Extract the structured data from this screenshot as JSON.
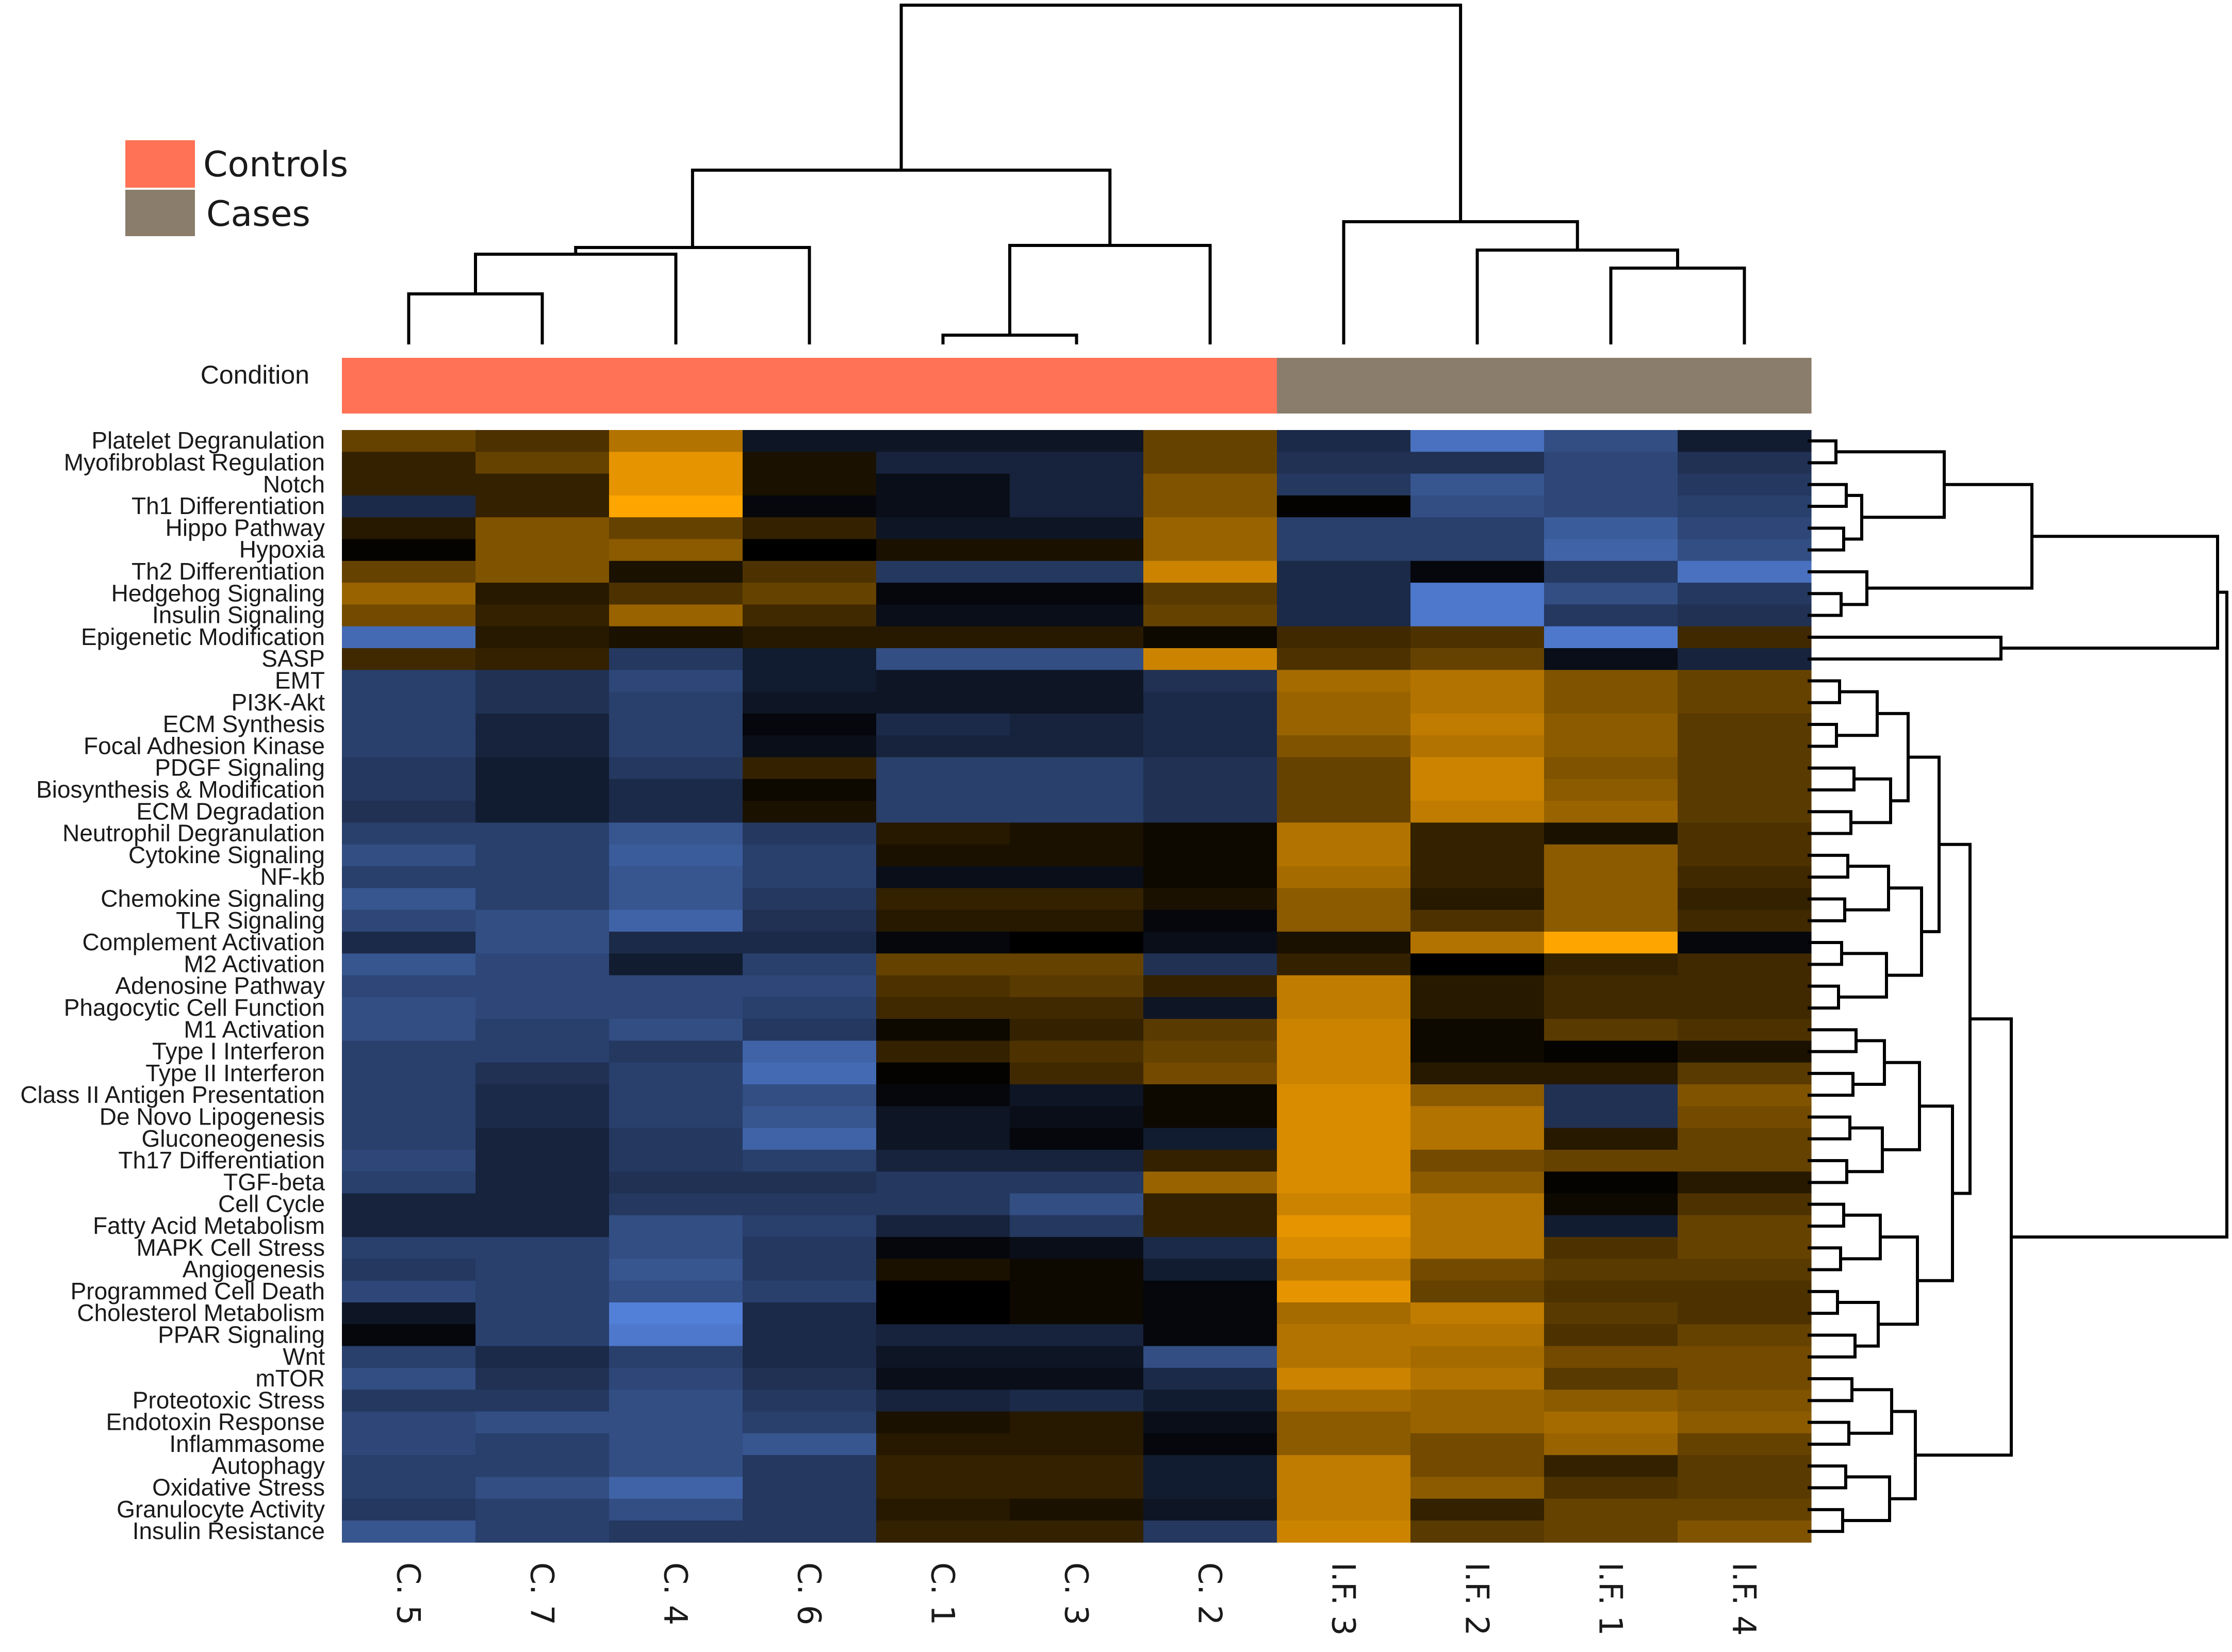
{
  "chart_data": {
    "type": "heatmap",
    "columns": [
      "C. 5",
      "C. 7",
      "C. 4",
      "C. 6",
      "C. 1",
      "C. 3",
      "C. 2",
      "I.F. 3",
      "I.F. 2",
      "I.F. 1",
      "I.F. 4"
    ],
    "rows": [
      "Platelet Degranulation",
      "Myofibroblast Regulation",
      "Notch",
      "Th1 Differentiation",
      "Hippo Pathway",
      "Hypoxia",
      "Th2 Differentiation",
      "Hedgehog Signaling",
      "Insulin Signaling",
      "Epigenetic Modification",
      "SASP",
      "EMT",
      "PI3K-Akt",
      "ECM Synthesis",
      "Focal Adhesion Kinase",
      "PDGF Signaling",
      "Biosynthesis & Modification",
      "ECM Degradation",
      "Neutrophil Degranulation",
      "Cytokine Signaling",
      "NF-kb",
      "Chemokine Signaling",
      "TLR Signaling",
      "Complement Activation",
      "M2 Activation",
      "Adenosine Pathway",
      "Phagocytic Cell Function",
      "M1 Activation",
      "Type I Interferon",
      "Type II Interferon",
      "Class II Antigen Presentation",
      "De Novo Lipogenesis",
      "Gluconeogenesis",
      "Th17 Differentiation",
      "TGF-beta",
      "Cell Cycle",
      "Fatty Acid Metabolism",
      "MAPK Cell Stress",
      "Angiogenesis",
      "Programmed Cell Death",
      "Cholesterol Metabolism",
      "PPAR Signaling",
      "Wnt",
      "mTOR",
      "Proteotoxic Stress",
      "Endotoxin Response",
      "Inflammasome",
      "Autophagy",
      "Oxidative Stress",
      "Granulocyte Activity",
      "Insulin Resistance"
    ],
    "values": [
      [
        0.4,
        0.3,
        0.7,
        -0.15,
        -0.15,
        -0.15,
        0.4,
        -0.3,
        -0.8,
        -0.55,
        -0.2
      ],
      [
        0.2,
        0.4,
        0.9,
        0.1,
        -0.25,
        -0.25,
        0.4,
        -0.35,
        -0.35,
        -0.5,
        -0.35
      ],
      [
        0.2,
        0.2,
        0.9,
        0.1,
        -0.1,
        -0.25,
        0.5,
        -0.4,
        -0.6,
        -0.5,
        -0.4
      ],
      [
        -0.3,
        0.2,
        1.0,
        -0.05,
        -0.1,
        -0.25,
        0.5,
        0.02,
        -0.55,
        -0.5,
        -0.45
      ],
      [
        0.15,
        0.5,
        0.4,
        0.2,
        -0.15,
        -0.15,
        0.6,
        -0.45,
        -0.45,
        -0.65,
        -0.5
      ],
      [
        0.02,
        0.5,
        0.55,
        0.0,
        0.1,
        0.1,
        0.6,
        -0.45,
        -0.45,
        -0.7,
        -0.55
      ],
      [
        0.4,
        0.5,
        0.1,
        0.3,
        -0.4,
        -0.4,
        0.8,
        -0.3,
        -0.05,
        -0.4,
        -0.8
      ],
      [
        0.6,
        0.15,
        0.3,
        0.4,
        -0.05,
        -0.05,
        0.35,
        -0.3,
        -0.85,
        -0.55,
        -0.4
      ],
      [
        0.45,
        0.2,
        0.6,
        0.25,
        -0.1,
        -0.1,
        0.4,
        -0.3,
        -0.85,
        -0.4,
        -0.35
      ],
      [
        -0.75,
        0.15,
        0.1,
        0.15,
        0.15,
        0.15,
        0.05,
        0.25,
        0.3,
        -0.85,
        0.25
      ],
      [
        0.25,
        0.2,
        -0.4,
        -0.2,
        -0.55,
        -0.55,
        0.8,
        0.3,
        0.4,
        -0.1,
        -0.25
      ],
      [
        -0.45,
        -0.35,
        -0.5,
        -0.2,
        -0.15,
        -0.15,
        -0.35,
        0.65,
        0.7,
        0.5,
        0.4
      ],
      [
        -0.45,
        -0.35,
        -0.45,
        -0.15,
        -0.15,
        -0.15,
        -0.3,
        0.6,
        0.7,
        0.5,
        0.4
      ],
      [
        -0.45,
        -0.25,
        -0.45,
        -0.05,
        -0.3,
        -0.25,
        -0.3,
        0.6,
        0.75,
        0.55,
        0.35
      ],
      [
        -0.45,
        -0.25,
        -0.45,
        -0.1,
        -0.25,
        -0.25,
        -0.3,
        0.5,
        0.7,
        0.55,
        0.35
      ],
      [
        -0.4,
        -0.2,
        -0.4,
        0.2,
        -0.45,
        -0.45,
        -0.35,
        0.4,
        0.8,
        0.5,
        0.35
      ],
      [
        -0.4,
        -0.2,
        -0.3,
        0.05,
        -0.45,
        -0.45,
        -0.35,
        0.4,
        0.8,
        0.55,
        0.35
      ],
      [
        -0.35,
        -0.2,
        -0.3,
        0.1,
        -0.45,
        -0.45,
        -0.35,
        0.4,
        0.75,
        0.6,
        0.35
      ],
      [
        -0.45,
        -0.45,
        -0.6,
        -0.4,
        0.15,
        0.1,
        0.05,
        0.7,
        0.2,
        0.1,
        0.3
      ],
      [
        -0.55,
        -0.45,
        -0.65,
        -0.45,
        0.1,
        0.1,
        0.05,
        0.7,
        0.2,
        0.55,
        0.3
      ],
      [
        -0.45,
        -0.45,
        -0.6,
        -0.45,
        -0.1,
        -0.1,
        0.05,
        0.65,
        0.2,
        0.55,
        0.25
      ],
      [
        -0.6,
        -0.45,
        -0.6,
        -0.4,
        0.2,
        0.2,
        0.1,
        0.55,
        0.15,
        0.55,
        0.2
      ],
      [
        -0.5,
        -0.55,
        -0.7,
        -0.35,
        0.15,
        0.15,
        -0.05,
        0.55,
        0.3,
        0.55,
        0.25
      ],
      [
        -0.3,
        -0.55,
        -0.3,
        -0.3,
        -0.05,
        0.0,
        -0.1,
        0.1,
        0.7,
        1.0,
        -0.05
      ],
      [
        -0.6,
        -0.5,
        -0.2,
        -0.45,
        0.4,
        0.4,
        -0.35,
        0.2,
        0.0,
        0.2,
        0.25
      ],
      [
        -0.5,
        -0.5,
        -0.5,
        -0.5,
        0.3,
        0.35,
        0.2,
        0.75,
        0.15,
        0.25,
        0.25
      ],
      [
        -0.55,
        -0.5,
        -0.5,
        -0.45,
        0.25,
        0.25,
        -0.15,
        0.75,
        0.15,
        0.25,
        0.25
      ],
      [
        -0.55,
        -0.45,
        -0.55,
        -0.4,
        0.05,
        0.2,
        0.35,
        0.8,
        0.05,
        0.35,
        0.3
      ],
      [
        -0.45,
        -0.45,
        -0.4,
        -0.7,
        0.2,
        0.3,
        0.4,
        0.8,
        0.05,
        0.02,
        0.1
      ],
      [
        -0.45,
        -0.35,
        -0.45,
        -0.75,
        0.02,
        0.25,
        0.45,
        0.8,
        0.15,
        0.15,
        0.35
      ],
      [
        -0.45,
        -0.3,
        -0.45,
        -0.55,
        -0.05,
        -0.15,
        0.05,
        0.85,
        0.55,
        -0.35,
        0.5
      ],
      [
        -0.45,
        -0.3,
        -0.45,
        -0.6,
        -0.15,
        -0.1,
        0.05,
        0.85,
        0.7,
        -0.35,
        0.45
      ],
      [
        -0.45,
        -0.25,
        -0.4,
        -0.7,
        -0.15,
        -0.05,
        -0.2,
        0.85,
        0.7,
        0.15,
        0.4
      ],
      [
        -0.5,
        -0.25,
        -0.4,
        -0.45,
        -0.25,
        -0.25,
        0.2,
        0.85,
        0.45,
        0.4,
        0.4
      ],
      [
        -0.45,
        -0.25,
        -0.35,
        -0.35,
        -0.4,
        -0.4,
        0.6,
        0.85,
        0.55,
        0.02,
        0.15
      ],
      [
        -0.25,
        -0.25,
        -0.4,
        -0.4,
        -0.4,
        -0.55,
        0.2,
        0.8,
        0.7,
        0.05,
        0.3
      ],
      [
        -0.25,
        -0.25,
        -0.55,
        -0.45,
        -0.25,
        -0.4,
        0.2,
        0.9,
        0.7,
        -0.2,
        0.4
      ],
      [
        -0.45,
        -0.45,
        -0.55,
        -0.4,
        -0.05,
        -0.1,
        -0.3,
        0.85,
        0.7,
        0.3,
        0.4
      ],
      [
        -0.4,
        -0.45,
        -0.6,
        -0.4,
        0.1,
        0.05,
        -0.2,
        0.75,
        0.45,
        0.35,
        0.35
      ],
      [
        -0.5,
        -0.45,
        -0.55,
        -0.45,
        0.0,
        0.05,
        -0.05,
        0.9,
        0.4,
        0.3,
        0.3
      ],
      [
        -0.15,
        -0.45,
        -0.9,
        -0.3,
        0.0,
        0.05,
        -0.05,
        0.65,
        0.75,
        0.35,
        0.3
      ],
      [
        -0.05,
        -0.45,
        -0.85,
        -0.3,
        -0.25,
        -0.25,
        -0.05,
        0.7,
        0.7,
        0.3,
        0.4
      ],
      [
        -0.45,
        -0.3,
        -0.45,
        -0.3,
        -0.15,
        -0.15,
        -0.55,
        0.7,
        0.65,
        0.45,
        0.45
      ],
      [
        -0.55,
        -0.35,
        -0.5,
        -0.35,
        -0.1,
        -0.1,
        -0.3,
        0.8,
        0.7,
        0.35,
        0.45
      ],
      [
        -0.4,
        -0.4,
        -0.55,
        -0.4,
        -0.25,
        -0.3,
        -0.2,
        0.65,
        0.6,
        0.55,
        0.5
      ],
      [
        -0.5,
        -0.55,
        -0.55,
        -0.45,
        0.1,
        0.15,
        -0.1,
        0.55,
        0.6,
        0.65,
        0.55
      ],
      [
        -0.5,
        -0.45,
        -0.55,
        -0.6,
        0.15,
        0.15,
        -0.05,
        0.55,
        0.45,
        0.6,
        0.4
      ],
      [
        -0.45,
        -0.45,
        -0.55,
        -0.4,
        0.2,
        0.2,
        -0.2,
        0.75,
        0.45,
        0.2,
        0.35
      ],
      [
        -0.45,
        -0.55,
        -0.7,
        -0.4,
        0.2,
        0.2,
        -0.2,
        0.75,
        0.55,
        0.3,
        0.35
      ],
      [
        -0.4,
        -0.45,
        -0.55,
        -0.4,
        0.15,
        0.1,
        -0.15,
        0.75,
        0.2,
        0.4,
        0.4
      ],
      [
        -0.6,
        -0.45,
        -0.4,
        -0.4,
        0.2,
        0.2,
        -0.4,
        0.8,
        0.35,
        0.4,
        0.5
      ]
    ],
    "color_scale": {
      "low": "#5b8def",
      "mid": "#000000",
      "high": "#ffa500"
    },
    "condition": {
      "label": "Condition",
      "groups": [
        "Controls",
        "Controls",
        "Controls",
        "Controls",
        "Controls",
        "Controls",
        "Controls",
        "Cases",
        "Cases",
        "Cases",
        "Cases"
      ]
    },
    "legend": {
      "items": [
        {
          "name": "Controls",
          "color": "#ff7256"
        },
        {
          "name": "Cases",
          "color": "#8b7d6b"
        }
      ],
      "position": "top-left"
    },
    "column_dendrogram": true,
    "row_dendrogram": true
  }
}
